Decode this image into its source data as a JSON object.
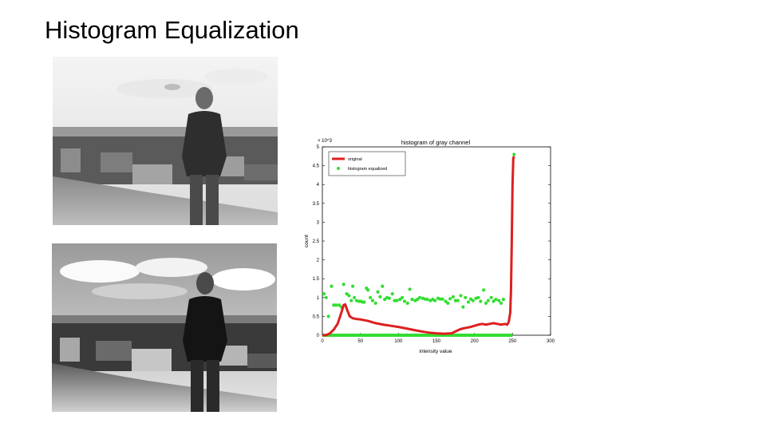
{
  "slide": {
    "title": "Histogram Equalization"
  },
  "images": {
    "original": {
      "name": "original-grayscale-photo"
    },
    "equalized": {
      "name": "equalized-grayscale-photo"
    }
  },
  "colors": {
    "original_series": "#dd1f1f",
    "equalized_series": "#33dd33",
    "axis": "#000000"
  },
  "chart_data": {
    "type": "line",
    "title": "histogram of gray channel",
    "xlabel": "intensity value",
    "ylabel": "count",
    "y_multiplier": "× 10^3",
    "xlim": [
      0,
      300
    ],
    "ylim": [
      0,
      5
    ],
    "xticks": [
      0,
      50,
      100,
      150,
      200,
      250,
      300
    ],
    "yticks": [
      0,
      0.5,
      1,
      1.5,
      2,
      2.5,
      3,
      3.5,
      4,
      4.5,
      5
    ],
    "legend_position": "top-left",
    "grid": false,
    "series": [
      {
        "name": "original",
        "style": "line",
        "x": [
          0,
          5,
          10,
          15,
          20,
          25,
          28,
          30,
          33,
          36,
          40,
          45,
          50,
          60,
          70,
          80,
          90,
          100,
          110,
          120,
          130,
          140,
          150,
          160,
          170,
          175,
          180,
          185,
          190,
          195,
          200,
          205,
          210,
          215,
          220,
          225,
          230,
          235,
          240,
          243,
          245,
          247,
          248,
          249,
          250,
          251,
          252
        ],
        "y": [
          0,
          0,
          0.05,
          0.15,
          0.3,
          0.6,
          0.8,
          0.82,
          0.65,
          0.5,
          0.45,
          0.43,
          0.42,
          0.38,
          0.32,
          0.28,
          0.25,
          0.22,
          0.18,
          0.14,
          0.1,
          0.07,
          0.05,
          0.04,
          0.05,
          0.1,
          0.15,
          0.18,
          0.2,
          0.22,
          0.25,
          0.28,
          0.3,
          0.28,
          0.3,
          0.32,
          0.3,
          0.28,
          0.3,
          0.28,
          0.35,
          0.6,
          1.2,
          2.5,
          4.0,
          4.7,
          4.75
        ]
      },
      {
        "name": "histogram equalized",
        "style": "markers",
        "x": [
          2,
          5,
          8,
          12,
          15,
          18,
          22,
          25,
          28,
          32,
          35,
          38,
          40,
          42,
          45,
          48,
          50,
          53,
          55,
          58,
          60,
          63,
          66,
          70,
          73,
          76,
          79,
          82,
          85,
          88,
          92,
          95,
          98,
          102,
          105,
          108,
          112,
          115,
          118,
          122,
          125,
          128,
          132,
          135,
          138,
          142,
          145,
          148,
          152,
          155,
          158,
          162,
          165,
          168,
          172,
          175,
          178,
          182,
          185,
          188,
          192,
          195,
          198,
          202,
          205,
          208,
          212,
          215,
          218,
          222,
          225,
          228,
          232,
          235,
          238,
          252
        ],
        "y": [
          1.1,
          1.0,
          0.5,
          1.3,
          0.8,
          0.8,
          0.8,
          0.75,
          1.35,
          1.1,
          1.05,
          0.92,
          1.3,
          1.0,
          0.92,
          0.9,
          0.9,
          0.88,
          0.88,
          1.25,
          1.2,
          1.0,
          0.92,
          0.85,
          1.15,
          1.02,
          1.3,
          0.95,
          1.0,
          0.98,
          1.1,
          0.92,
          0.92,
          0.95,
          1.0,
          0.9,
          0.85,
          1.22,
          0.95,
          0.92,
          0.95,
          1.0,
          0.98,
          0.96,
          0.95,
          0.92,
          0.95,
          0.92,
          0.98,
          0.96,
          0.96,
          0.9,
          0.85,
          0.97,
          1.02,
          0.92,
          0.92,
          1.05,
          0.75,
          1.0,
          0.88,
          0.96,
          0.92,
          0.98,
          1.0,
          0.9,
          1.2,
          0.85,
          0.92,
          1.0,
          0.9,
          0.95,
          0.92,
          0.85,
          0.95,
          4.8
        ]
      }
    ],
    "equalized_zero_band": {
      "from": 0,
      "to": 250,
      "value": 0
    }
  }
}
